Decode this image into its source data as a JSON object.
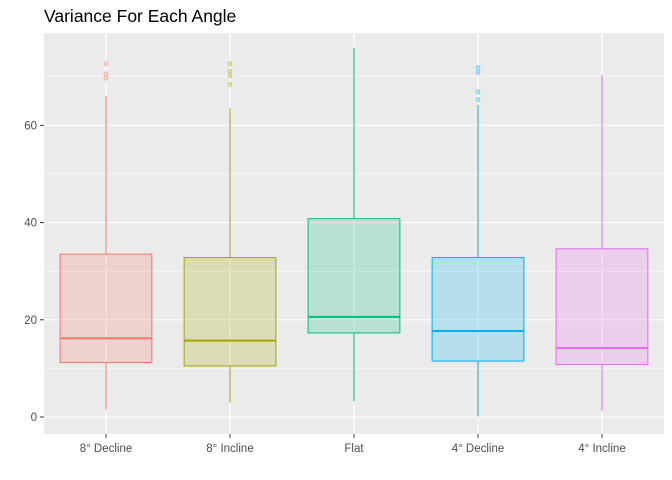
{
  "chart_data": {
    "type": "boxplot",
    "title": "Variance For Each Angle",
    "xlabel": "",
    "ylabel": "",
    "ylim": [
      -3.5,
      79
    ],
    "yticks": [
      0,
      20,
      40,
      60
    ],
    "grid": true,
    "legend": "none",
    "background": "#ebebeb",
    "categories": [
      "8° Decline",
      "8° Incline",
      "Flat",
      "4° Decline",
      "4° Incline"
    ],
    "colors": [
      "#f8766d",
      "#a3a500",
      "#00bf7d",
      "#00b0f6",
      "#e76bf3"
    ],
    "boxes": [
      {
        "category": "8° Decline",
        "min": 1.5,
        "q1": 11.2,
        "median": 16.2,
        "q3": 33.5,
        "max": 66,
        "outliers": [
          69.7,
          70.6,
          72.7
        ]
      },
      {
        "category": "8° Incline",
        "min": 3,
        "q1": 10.5,
        "median": 15.7,
        "q3": 32.8,
        "max": 63.5,
        "outliers": [
          68.4,
          70.2,
          71.1,
          72.7
        ]
      },
      {
        "category": "Flat",
        "min": 3.3,
        "q1": 17.3,
        "median": 20.6,
        "q3": 40.8,
        "max": 76,
        "outliers": []
      },
      {
        "category": "4° Decline",
        "min": 0.1,
        "q1": 11.5,
        "median": 17.7,
        "q3": 32.8,
        "max": 64.2,
        "outliers": [
          65.3,
          66.9,
          70.9,
          71.9
        ]
      },
      {
        "category": "4° Incline",
        "min": 1.3,
        "q1": 10.8,
        "median": 14.2,
        "q3": 34.6,
        "max": 70.4,
        "outliers": []
      }
    ]
  }
}
